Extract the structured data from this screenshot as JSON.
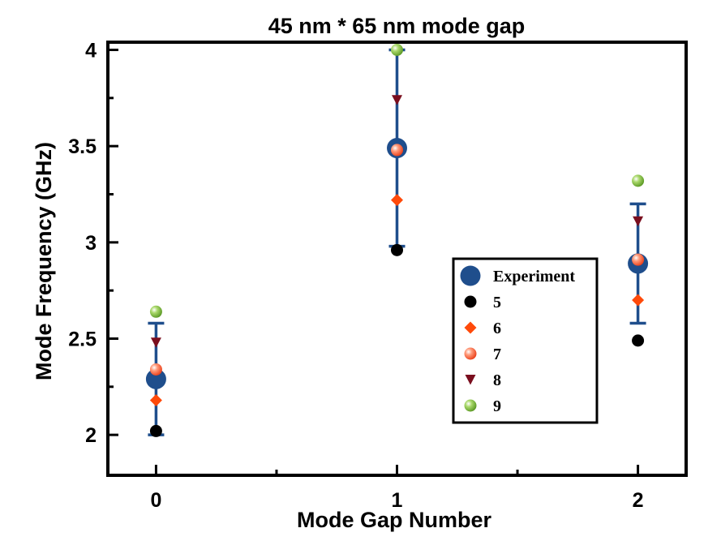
{
  "chart_data": {
    "type": "scatter",
    "title": "45 nm * 65 nm mode gap",
    "xlabel": "Mode Gap Number",
    "ylabel": "Mode Frequency (GHz)",
    "xlim": [
      -0.2,
      2.2
    ],
    "ylim": [
      1.79,
      4.04
    ],
    "xticks": [
      0,
      1,
      2
    ],
    "xtick_labels": [
      "0",
      "1",
      "2"
    ],
    "xminor": [
      0.5,
      1.5
    ],
    "yticks": [
      2,
      2.5,
      3,
      3.5,
      4
    ],
    "ytick_labels": [
      "2",
      "2.5",
      "3",
      "3.5",
      "4"
    ],
    "yminor": [
      2.25,
      2.75,
      3.25,
      3.75
    ],
    "grid": false,
    "legend_position": "right",
    "series": [
      {
        "name": "Experiment",
        "marker": "circle-large",
        "color": "#1f4e8c",
        "x": [
          0,
          1,
          2
        ],
        "y": [
          2.29,
          3.49,
          2.89
        ],
        "error_low": [
          2.0,
          2.98,
          2.58
        ],
        "error_high": [
          2.58,
          4.0,
          3.2
        ]
      },
      {
        "name": "5",
        "marker": "circle",
        "color": "#000000",
        "x": [
          0,
          1,
          2
        ],
        "y": [
          2.02,
          2.96,
          2.49
        ]
      },
      {
        "name": "6",
        "marker": "diamond",
        "color": "#ff4a0a",
        "x": [
          0,
          1,
          2
        ],
        "y": [
          2.18,
          3.22,
          2.7
        ]
      },
      {
        "name": "7",
        "marker": "sphere",
        "color": "#ff5a2a",
        "x": [
          0,
          1,
          2
        ],
        "y": [
          2.34,
          3.48,
          2.91
        ]
      },
      {
        "name": "8",
        "marker": "triangle-down",
        "color": "#7a0e1e",
        "x": [
          0,
          1,
          2
        ],
        "y": [
          2.48,
          3.74,
          3.11
        ]
      },
      {
        "name": "9",
        "marker": "sphere",
        "color": "#6aaf2a",
        "x": [
          0,
          1,
          2
        ],
        "y": [
          2.64,
          4.0,
          3.32
        ]
      }
    ]
  }
}
